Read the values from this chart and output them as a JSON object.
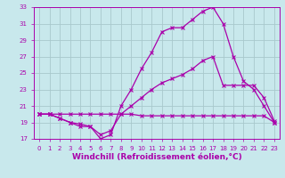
{
  "xlabel": "Windchill (Refroidissement éolien,°C)",
  "bg_color": "#c8e8ec",
  "grid_color": "#a8c8cc",
  "line_color": "#aa00aa",
  "xlim": [
    -0.5,
    23.5
  ],
  "ylim": [
    17,
    33
  ],
  "xticks": [
    0,
    1,
    2,
    3,
    4,
    5,
    6,
    7,
    8,
    9,
    10,
    11,
    12,
    13,
    14,
    15,
    16,
    17,
    18,
    19,
    20,
    21,
    22,
    23
  ],
  "yticks": [
    17,
    19,
    21,
    23,
    25,
    27,
    29,
    31,
    33
  ],
  "line1_x": [
    0,
    1,
    2,
    3,
    4,
    5,
    6,
    7,
    8,
    9,
    10,
    11,
    12,
    13,
    14,
    15,
    16,
    17,
    18,
    19,
    20,
    21,
    22,
    23
  ],
  "line1_y": [
    20.0,
    20.0,
    19.5,
    19.0,
    18.5,
    18.5,
    17.0,
    17.5,
    21.0,
    23.0,
    25.5,
    27.5,
    30.0,
    30.5,
    30.5,
    31.5,
    32.5,
    33.0,
    31.0,
    27.0,
    24.0,
    23.0,
    21.0,
    19.0
  ],
  "line2_x": [
    0,
    1,
    2,
    3,
    4,
    5,
    6,
    7,
    8,
    9,
    10,
    11,
    12,
    13,
    14,
    15,
    16,
    17,
    18,
    19,
    20,
    21,
    22,
    23
  ],
  "line2_y": [
    20.0,
    20.0,
    19.5,
    19.0,
    18.8,
    18.5,
    17.5,
    18.0,
    20.0,
    21.0,
    22.0,
    23.0,
    23.8,
    24.3,
    24.8,
    25.5,
    26.5,
    27.0,
    23.5,
    23.5,
    23.5,
    23.5,
    22.0,
    19.2
  ],
  "line3_x": [
    0,
    1,
    2,
    3,
    4,
    5,
    6,
    7,
    8,
    9,
    10,
    11,
    12,
    13,
    14,
    15,
    16,
    17,
    18,
    19,
    20,
    21,
    22,
    23
  ],
  "line3_y": [
    20.0,
    20.0,
    20.0,
    20.0,
    20.0,
    20.0,
    20.0,
    20.0,
    20.0,
    20.0,
    19.8,
    19.8,
    19.8,
    19.8,
    19.8,
    19.8,
    19.8,
    19.8,
    19.8,
    19.8,
    19.8,
    19.8,
    19.8,
    19.0
  ],
  "marker": "x",
  "markersize": 3,
  "linewidth": 0.9,
  "tick_fontsize": 5,
  "label_fontsize": 6.5
}
